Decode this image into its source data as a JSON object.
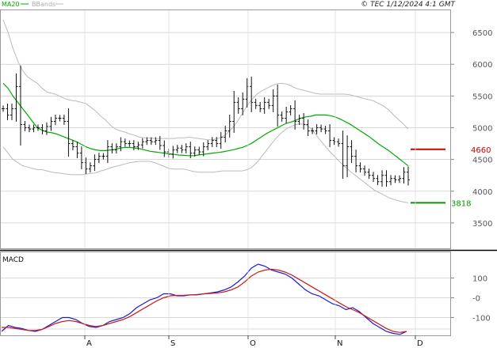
{
  "copyright": "© TEC 1/12/2024 4:1 GMT",
  "chart_data": [
    {
      "type": "candlestick",
      "panel": "price",
      "legend": [
        {
          "name": "MA20",
          "color": "#00aa00"
        },
        {
          "name": "BBands",
          "color": "#bbbbbb"
        }
      ],
      "ylim": [
        3100,
        6850
      ],
      "y_ticks": [
        3500,
        4000,
        4500,
        5000,
        5500,
        6000,
        6500
      ],
      "x_month_labels": [
        "A",
        "S",
        "O",
        "N",
        "D"
      ],
      "levels": [
        {
          "label": "4660",
          "value": 4660,
          "color": "#cc0000"
        },
        {
          "label": "3818",
          "value": 3818,
          "color": "#009900"
        }
      ],
      "close": [
        5300,
        5200,
        5300,
        5650,
        5050,
        5000,
        4980,
        5000,
        5000,
        4950,
        5020,
        5100,
        5150,
        5150,
        5100,
        4750,
        4700,
        4600,
        4450,
        4350,
        4400,
        4500,
        4550,
        4550,
        4700,
        4650,
        4700,
        4780,
        4750,
        4750,
        4700,
        4730,
        4780,
        4800,
        4780,
        4800,
        4720,
        4620,
        4580,
        4650,
        4680,
        4650,
        4700,
        4600,
        4650,
        4620,
        4700,
        4750,
        4800,
        4750,
        4850,
        4950,
        5100,
        5400,
        5300,
        5450,
        5650,
        5400,
        5350,
        5300,
        5400,
        5350,
        5500,
        5200,
        5150,
        5250,
        5300,
        5100,
        5150,
        5050,
        4950,
        4950,
        5000,
        4980,
        4950,
        4800,
        4780,
        4750,
        4400,
        4700,
        4550,
        4400,
        4350,
        4300,
        4250,
        4200,
        4150,
        4250,
        4150,
        4200,
        4180,
        4200,
        4300,
        4180
      ],
      "ma20": [
        5700,
        5620,
        5500,
        5400,
        5300,
        5200,
        5100,
        5000,
        4960,
        4930,
        4920,
        4900,
        4870,
        4840,
        4810,
        4780,
        4740,
        4700,
        4670,
        4650,
        4640,
        4640,
        4650,
        4660,
        4680,
        4690,
        4690,
        4680,
        4670,
        4650,
        4630,
        4620,
        4610,
        4600,
        4590,
        4580,
        4570,
        4565,
        4560,
        4560,
        4570,
        4580,
        4590,
        4600,
        4610,
        4620,
        4635,
        4650,
        4670,
        4690,
        4720,
        4760,
        4810,
        4860,
        4910,
        4950,
        4990,
        5030,
        5070,
        5090,
        5120,
        5150,
        5170,
        5180,
        5200,
        5200,
        5200,
        5190,
        5170,
        5140,
        5100,
        5060,
        5010,
        4960,
        4910,
        4860,
        4800,
        4740,
        4690,
        4640,
        4580,
        4520,
        4460,
        4400
      ],
      "bb_upper": [
        6700,
        6500,
        6250,
        6050,
        5900,
        5800,
        5750,
        5700,
        5620,
        5560,
        5540,
        5520,
        5480,
        5450,
        5430,
        5420,
        5400,
        5380,
        5320,
        5260,
        5180,
        5120,
        5040,
        4980,
        4950,
        4930,
        4900,
        4880,
        4850,
        4840,
        4840,
        4830,
        4830,
        4830,
        4830,
        4830,
        4840,
        4840,
        4850,
        4840,
        4830,
        4820,
        4810,
        4810,
        4830,
        4860,
        4920,
        5000,
        5100,
        5220,
        5350,
        5450,
        5530,
        5580,
        5620,
        5660,
        5690,
        5700,
        5690,
        5660,
        5620,
        5600,
        5580,
        5560,
        5540,
        5530,
        5530,
        5530,
        5530,
        5530,
        5530,
        5520,
        5500,
        5480,
        5460,
        5440,
        5420,
        5380,
        5340,
        5280,
        5200,
        5130,
        5060,
        4980
      ],
      "bb_lower": [
        4700,
        4600,
        4500,
        4450,
        4400,
        4380,
        4360,
        4340,
        4340,
        4320,
        4300,
        4290,
        4280,
        4270,
        4260,
        4260,
        4260,
        4270,
        4280,
        4290,
        4320,
        4340,
        4370,
        4390,
        4410,
        4430,
        4450,
        4460,
        4470,
        4470,
        4470,
        4450,
        4420,
        4390,
        4360,
        4350,
        4350,
        4350,
        4330,
        4310,
        4300,
        4300,
        4300,
        4300,
        4310,
        4320,
        4320,
        4320,
        4320,
        4320,
        4340,
        4380,
        4450,
        4550,
        4650,
        4750,
        4840,
        4920,
        4980,
        5020,
        5050,
        5060,
        5050,
        4990,
        4900,
        4800,
        4710,
        4620,
        4540,
        4460,
        4390,
        4320,
        4260,
        4200,
        4140,
        4080,
        4020,
        3980,
        3940,
        3900,
        3870,
        3850,
        3830,
        3818
      ]
    },
    {
      "type": "line",
      "panel": "macd",
      "title": "MACD",
      "ylim": [
        -190,
        230
      ],
      "y_ticks": [
        -100,
        0,
        100
      ],
      "y_tick_labels": [
        "-100",
        "-0",
        "100"
      ],
      "series": [
        {
          "color": "#1a1ad6",
          "values": [
            -170,
            -140,
            -150,
            -155,
            -165,
            -170,
            -160,
            -140,
            -120,
            -100,
            -100,
            -110,
            -130,
            -145,
            -150,
            -140,
            -120,
            -110,
            -100,
            -80,
            -50,
            -30,
            -10,
            0,
            20,
            20,
            10,
            10,
            15,
            15,
            20,
            25,
            30,
            40,
            55,
            80,
            110,
            150,
            170,
            160,
            140,
            130,
            120,
            100,
            70,
            40,
            20,
            10,
            -10,
            -30,
            -40,
            -60,
            -50,
            -70,
            -100,
            -130,
            -150,
            -170,
            -180,
            -185,
            -170
          ]
        },
        {
          "color": "#cc1a1a",
          "values": [
            -150,
            -150,
            -155,
            -160,
            -165,
            -165,
            -160,
            -145,
            -130,
            -120,
            -115,
            -120,
            -130,
            -140,
            -145,
            -140,
            -130,
            -120,
            -110,
            -95,
            -75,
            -55,
            -35,
            -15,
            0,
            10,
            12,
            13,
            15,
            17,
            20,
            22,
            25,
            30,
            40,
            55,
            80,
            110,
            130,
            140,
            145,
            140,
            130,
            115,
            95,
            75,
            55,
            35,
            15,
            -5,
            -25,
            -45,
            -60,
            -75,
            -95,
            -115,
            -135,
            -155,
            -170,
            -175,
            -170
          ]
        }
      ]
    }
  ]
}
